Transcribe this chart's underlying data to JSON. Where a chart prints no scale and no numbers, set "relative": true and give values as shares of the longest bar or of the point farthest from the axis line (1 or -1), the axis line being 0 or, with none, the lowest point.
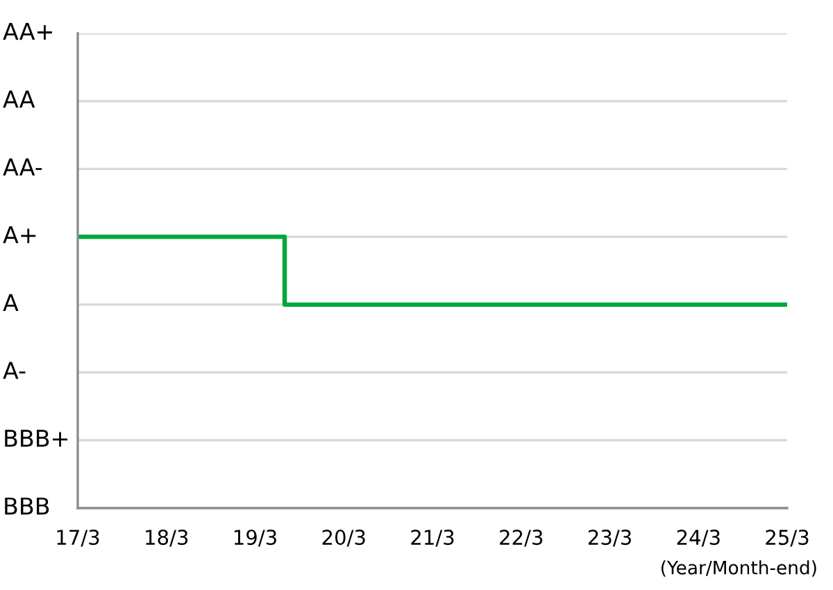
{
  "chart_data": {
    "type": "step",
    "relative": true,
    "xlabel": "(Year/Month-end)",
    "categories": [
      "17/3",
      null,
      null,
      null,
      null,
      null,
      null,
      null,
      null,
      null,
      null,
      null,
      "18/3",
      null,
      null,
      null,
      null,
      null,
      null,
      null,
      null,
      null,
      null,
      null,
      "19/3",
      null,
      null,
      null,
      null,
      null,
      null,
      null,
      null,
      null,
      null,
      null,
      "20/3",
      null,
      null,
      null,
      null,
      null,
      null,
      null,
      null,
      null,
      null,
      null,
      "21/3",
      null,
      null,
      null,
      null,
      null,
      null,
      null,
      null,
      null,
      null,
      null,
      "22/3",
      null,
      null,
      null,
      null,
      null,
      null,
      null,
      null,
      null,
      null,
      null,
      "23/3",
      null,
      null,
      null,
      null,
      null,
      null,
      null,
      null,
      null,
      null,
      null,
      "24/3",
      null,
      null,
      null,
      null,
      null,
      null,
      null,
      null,
      null,
      null,
      null,
      "25/3"
    ],
    "annotations": [
      "AA+",
      "AA",
      "AA-",
      "A+",
      "A",
      "A-",
      "BBB+",
      "BBB"
    ],
    "series": [
      {
        "color": "#00a83c",
        "values": [
          1,
          1,
          1,
          1,
          1,
          1,
          1,
          1,
          1,
          1,
          1,
          1,
          1,
          1,
          1,
          1,
          1,
          1,
          1,
          1,
          1,
          1,
          1,
          1,
          1,
          1,
          1,
          1,
          0.75,
          0.75,
          0.75,
          0.75,
          0.75,
          0.75,
          0.75,
          0.75,
          0.75,
          0.75,
          0.75,
          0.75,
          0.75,
          0.75,
          0.75,
          0.75,
          0.75,
          0.75,
          0.75,
          0.75,
          0.75,
          0.75,
          0.75,
          0.75,
          0.75,
          0.75,
          0.75,
          0.75,
          0.75,
          0.75,
          0.75,
          0.75,
          0.75,
          0.75,
          0.75,
          0.75,
          0.75,
          0.75,
          0.75,
          0.75,
          0.75,
          0.75,
          0.75,
          0.75,
          0.75,
          0.75,
          0.75,
          0.75,
          0.75,
          0.75,
          0.75,
          0.75,
          0.75,
          0.75,
          0.75,
          0.75,
          0.75,
          0.75,
          0.75,
          0.75,
          0.75,
          0.75,
          0.75,
          0.75,
          0.75,
          0.75,
          0.75,
          0.75,
          0.75
        ]
      }
    ],
    "grid": "y"
  }
}
